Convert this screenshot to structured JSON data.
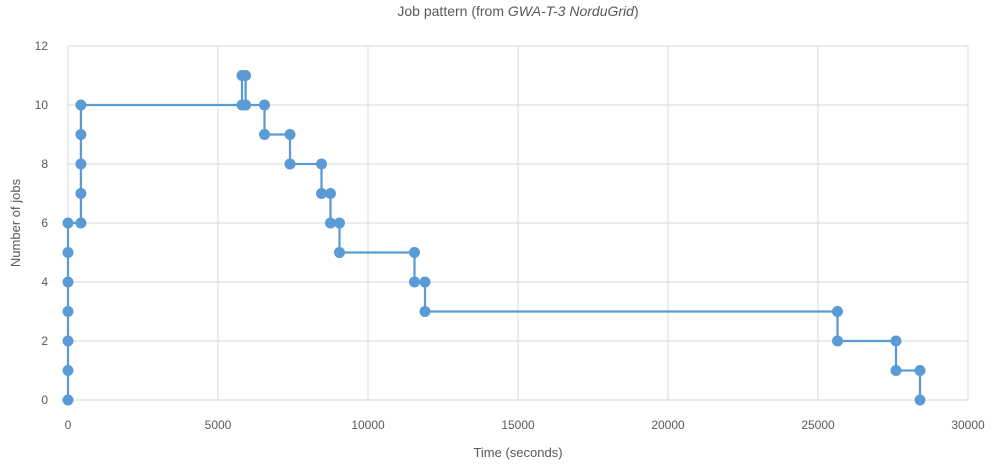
{
  "chart_data": {
    "type": "line",
    "title": {
      "prefix": "Job pattern (from ",
      "italic": "GWA-T-3 NorduGrid",
      "suffix": ")"
    },
    "xlabel": "Time (seconds)",
    "ylabel": "Number of jobs",
    "xlim": [
      0,
      30000
    ],
    "ylim": [
      0,
      12
    ],
    "x_ticks": [
      0,
      5000,
      10000,
      15000,
      20000,
      25000,
      30000
    ],
    "y_ticks": [
      0,
      2,
      4,
      6,
      8,
      10,
      12
    ],
    "grid": true,
    "legend": "none",
    "colors": {
      "series": "#5b9bd5",
      "grid": "#d9d9d9",
      "text": "#595959"
    },
    "series": [
      {
        "points": [
          [
            0,
            0
          ],
          [
            0,
            1
          ],
          [
            0,
            2
          ],
          [
            0,
            3
          ],
          [
            0,
            4
          ],
          [
            0,
            5
          ],
          [
            0,
            6
          ],
          [
            430,
            6
          ],
          [
            430,
            7
          ],
          [
            430,
            8
          ],
          [
            430,
            9
          ],
          [
            430,
            10
          ],
          [
            5800,
            10
          ],
          [
            5800,
            11
          ],
          [
            5920,
            11
          ],
          [
            5920,
            10
          ],
          [
            6550,
            10
          ],
          [
            6550,
            9
          ],
          [
            7400,
            9
          ],
          [
            7400,
            8
          ],
          [
            8450,
            8
          ],
          [
            8450,
            7
          ],
          [
            8750,
            7
          ],
          [
            8750,
            6
          ],
          [
            9050,
            6
          ],
          [
            9050,
            5
          ],
          [
            11550,
            5
          ],
          [
            11550,
            4
          ],
          [
            11900,
            4
          ],
          [
            11900,
            3
          ],
          [
            25650,
            3
          ],
          [
            25650,
            2
          ],
          [
            27600,
            2
          ],
          [
            27600,
            1
          ],
          [
            28400,
            1
          ],
          [
            28400,
            0
          ]
        ]
      }
    ]
  }
}
